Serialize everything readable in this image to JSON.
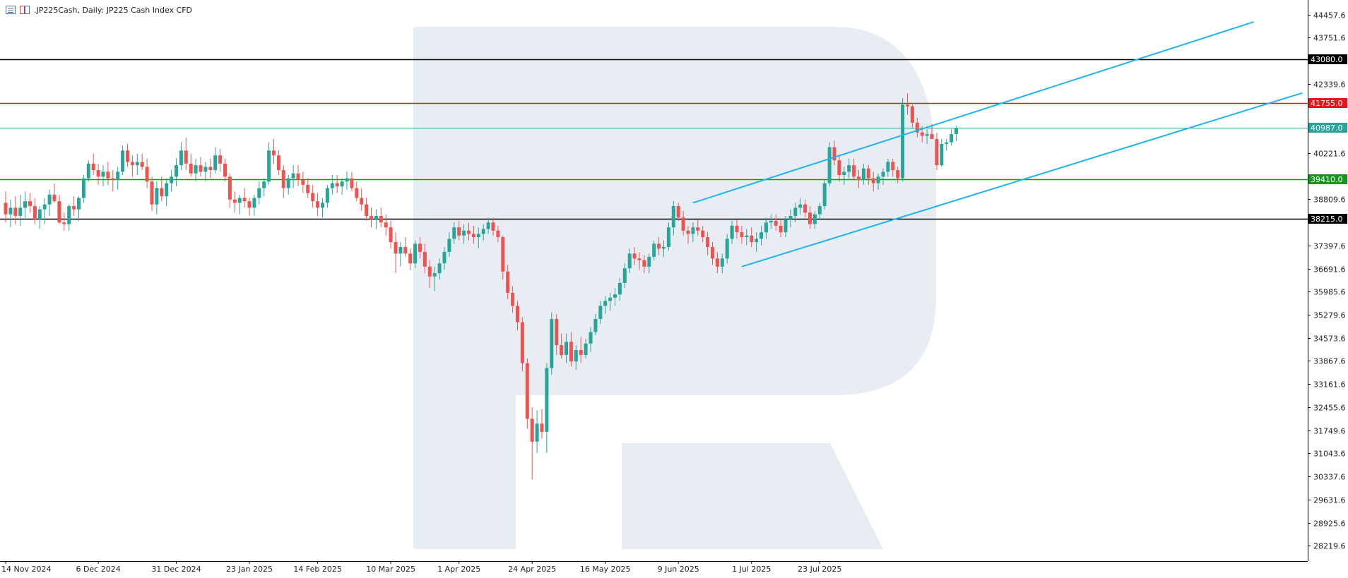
{
  "header": {
    "symbol": ".JP225Cash,",
    "timeframe": "Daily:",
    "description": "JP225 Cash Index CFD",
    "icons": [
      "chart-window-icon",
      "chart-type-icon"
    ]
  },
  "colors": {
    "background": "#ffffff",
    "bull": "#26a69a",
    "bear": "#ef5350",
    "channel": "#1eb4f0",
    "axis": "#000000",
    "watermark": "#e8ecf3"
  },
  "chart_data": {
    "type": "candlestick",
    "title": ".JP225Cash, Daily: JP225 Cash Index CFD",
    "y_axis": {
      "side": "right",
      "ticks": [
        "44457.6",
        "43751.6",
        "42339.6",
        "40221.6",
        "38809.6",
        "37397.6",
        "36691.6",
        "35985.6",
        "35279.6",
        "34573.6",
        "33867.6",
        "33161.6",
        "32455.6",
        "31749.6",
        "31043.6",
        "30337.6",
        "29631.6",
        "28925.6",
        "28219.6"
      ],
      "range": [
        27750,
        44900
      ]
    },
    "x_axis": {
      "labels": [
        "14 Nov 2024",
        "6 Dec 2024",
        "31 Dec 2024",
        "23 Jan 2025",
        "14 Feb 2025",
        "10 Mar 2025",
        "1 Apr 2025",
        "24 Apr 2025",
        "16 May 2025",
        "9 Jun 2025",
        "1 Jul 2025",
        "23 Jul 2025"
      ]
    },
    "horizontal_levels": [
      {
        "value": 43080.0,
        "label": "43080.0",
        "color": "#000000"
      },
      {
        "value": 41755.0,
        "label": "41755.0",
        "color": "#e8141e"
      },
      {
        "value": 40987.0,
        "label": "40987.0",
        "color": "#26a69a"
      },
      {
        "value": 39410.0,
        "label": "39410.0",
        "color": "#15961e"
      },
      {
        "value": 38215.0,
        "label": "38215.0",
        "color": "#000000"
      }
    ],
    "channel_lines": [
      {
        "from": {
          "bar": 141,
          "value": 38700
        },
        "to": {
          "bar": 256,
          "value": 44230
        }
      },
      {
        "from": {
          "bar": 151,
          "value": 36750
        },
        "to": {
          "bar": 266,
          "value": 42060
        }
      }
    ],
    "ohlc": [
      [
        38700,
        39050,
        38100,
        38350
      ],
      [
        38350,
        38800,
        37950,
        38550
      ],
      [
        38550,
        38900,
        38050,
        38300
      ],
      [
        38300,
        38950,
        38000,
        38550
      ],
      [
        38550,
        39050,
        38200,
        38750
      ],
      [
        38750,
        39000,
        38400,
        38600
      ],
      [
        38600,
        38850,
        38050,
        38200
      ],
      [
        38200,
        38600,
        37900,
        38500
      ],
      [
        38500,
        38850,
        38050,
        38650
      ],
      [
        38650,
        39100,
        38300,
        38950
      ],
      [
        38950,
        39300,
        38700,
        38750
      ],
      [
        38750,
        38950,
        38050,
        38100
      ],
      [
        38100,
        38400,
        37850,
        38050
      ],
      [
        38050,
        38650,
        37850,
        38600
      ],
      [
        38600,
        38900,
        38300,
        38500
      ],
      [
        38500,
        38900,
        38150,
        38850
      ],
      [
        38850,
        39550,
        38700,
        39450
      ],
      [
        39450,
        40000,
        39350,
        39900
      ],
      [
        39900,
        40200,
        39550,
        39700
      ],
      [
        39700,
        39900,
        39250,
        39500
      ],
      [
        39500,
        39850,
        39200,
        39650
      ],
      [
        39650,
        39950,
        39250,
        39450
      ],
      [
        39450,
        39700,
        39050,
        39400
      ],
      [
        39400,
        39800,
        39100,
        39650
      ],
      [
        39650,
        40450,
        39550,
        40300
      ],
      [
        40300,
        40500,
        39800,
        39950
      ],
      [
        39950,
        40150,
        39500,
        39850
      ],
      [
        39850,
        40200,
        39550,
        39950
      ],
      [
        39950,
        40200,
        39700,
        39800
      ],
      [
        39800,
        40050,
        39150,
        39350
      ],
      [
        39350,
        39500,
        38450,
        38650
      ],
      [
        38650,
        39350,
        38350,
        39150
      ],
      [
        39150,
        39500,
        38750,
        38900
      ],
      [
        38900,
        39450,
        38600,
        39300
      ],
      [
        39300,
        39700,
        39050,
        39500
      ],
      [
        39500,
        40050,
        39200,
        39850
      ],
      [
        39850,
        40550,
        39700,
        40300
      ],
      [
        40300,
        40700,
        39700,
        39900
      ],
      [
        39900,
        40200,
        39500,
        39600
      ],
      [
        39600,
        40050,
        39350,
        39850
      ],
      [
        39850,
        40100,
        39500,
        39650
      ],
      [
        39650,
        39950,
        39350,
        39800
      ],
      [
        39800,
        40050,
        39450,
        39700
      ],
      [
        39700,
        40400,
        39600,
        40150
      ],
      [
        40150,
        40350,
        39650,
        39900
      ],
      [
        39900,
        40050,
        39350,
        39500
      ],
      [
        39500,
        39600,
        38550,
        38800
      ],
      [
        38800,
        39050,
        38400,
        38700
      ],
      [
        38700,
        38950,
        38350,
        38850
      ],
      [
        38850,
        39150,
        38550,
        38750
      ],
      [
        38750,
        38850,
        38300,
        38550
      ],
      [
        38550,
        38950,
        38300,
        38850
      ],
      [
        38850,
        39350,
        38650,
        39150
      ],
      [
        39150,
        39450,
        38900,
        39350
      ],
      [
        39350,
        40550,
        39250,
        40300
      ],
      [
        40300,
        40650,
        39900,
        40150
      ],
      [
        40150,
        40300,
        39550,
        39700
      ],
      [
        39700,
        39850,
        38850,
        39150
      ],
      [
        39150,
        39550,
        38950,
        39450
      ],
      [
        39450,
        39850,
        39150,
        39600
      ],
      [
        39600,
        39850,
        39200,
        39400
      ],
      [
        39400,
        39650,
        39000,
        39250
      ],
      [
        39250,
        39450,
        38850,
        39000
      ],
      [
        39000,
        39250,
        38550,
        38750
      ],
      [
        38750,
        39000,
        38300,
        38550
      ],
      [
        38550,
        38850,
        38250,
        38700
      ],
      [
        38700,
        39250,
        38550,
        39150
      ],
      [
        39150,
        39550,
        38950,
        39300
      ],
      [
        39300,
        39550,
        39000,
        39200
      ],
      [
        39200,
        39450,
        38950,
        39350
      ],
      [
        39350,
        39650,
        39100,
        39450
      ],
      [
        39450,
        39650,
        39050,
        39150
      ],
      [
        39150,
        39350,
        38750,
        38850
      ],
      [
        38850,
        39150,
        38450,
        38650
      ],
      [
        38650,
        38850,
        38150,
        38300
      ],
      [
        38300,
        38550,
        37950,
        38200
      ],
      [
        38200,
        38500,
        37900,
        38300
      ],
      [
        38300,
        38550,
        37950,
        38100
      ],
      [
        38100,
        38350,
        37700,
        37950
      ],
      [
        37950,
        38150,
        37300,
        37500
      ],
      [
        37500,
        37800,
        36550,
        37150
      ],
      [
        37150,
        37500,
        36750,
        37350
      ],
      [
        37350,
        37650,
        37050,
        37150
      ],
      [
        37150,
        37300,
        36650,
        36850
      ],
      [
        36850,
        37550,
        36700,
        37450
      ],
      [
        37450,
        37650,
        37000,
        37200
      ],
      [
        37200,
        37450,
        36550,
        36750
      ],
      [
        36750,
        36950,
        36100,
        36450
      ],
      [
        36450,
        36750,
        36000,
        36550
      ],
      [
        36550,
        37000,
        36350,
        36850
      ],
      [
        36850,
        37350,
        36650,
        37200
      ],
      [
        37200,
        37800,
        37050,
        37600
      ],
      [
        37600,
        38100,
        37450,
        37950
      ],
      [
        37950,
        38150,
        37550,
        37700
      ],
      [
        37700,
        38050,
        37450,
        37850
      ],
      [
        37850,
        38100,
        37550,
        37750
      ],
      [
        37750,
        38000,
        37450,
        37650
      ],
      [
        37650,
        37950,
        37300,
        37750
      ],
      [
        37750,
        38050,
        37550,
        37900
      ],
      [
        37900,
        38250,
        37750,
        38100
      ],
      [
        38100,
        38250,
        37700,
        37850
      ],
      [
        37850,
        38000,
        37500,
        37650
      ],
      [
        37650,
        37700,
        36350,
        36600
      ],
      [
        36600,
        36800,
        35750,
        35950
      ],
      [
        35950,
        36150,
        35350,
        35550
      ],
      [
        35550,
        35700,
        34800,
        35050
      ],
      [
        35050,
        35200,
        33550,
        33800
      ],
      [
        33800,
        33950,
        31800,
        32100
      ],
      [
        32100,
        32450,
        30250,
        31400
      ],
      [
        31400,
        32350,
        31050,
        31950
      ],
      [
        31950,
        32400,
        31500,
        31700
      ],
      [
        31700,
        33800,
        31050,
        33650
      ],
      [
        33650,
        35350,
        33450,
        35150
      ],
      [
        35150,
        35300,
        34050,
        34350
      ],
      [
        34350,
        34700,
        33950,
        34050
      ],
      [
        34050,
        34700,
        33800,
        34450
      ],
      [
        34450,
        34750,
        33700,
        33850
      ],
      [
        33850,
        34350,
        33600,
        34200
      ],
      [
        34200,
        34600,
        33800,
        34050
      ],
      [
        34050,
        34550,
        33950,
        34400
      ],
      [
        34400,
        34900,
        34150,
        34750
      ],
      [
        34750,
        35300,
        34650,
        35150
      ],
      [
        35150,
        35700,
        35000,
        35550
      ],
      [
        35550,
        35850,
        35300,
        35700
      ],
      [
        35700,
        35950,
        35400,
        35800
      ],
      [
        35800,
        36100,
        35550,
        35900
      ],
      [
        35900,
        36400,
        35700,
        36250
      ],
      [
        36250,
        36850,
        36100,
        36700
      ],
      [
        36700,
        37300,
        36550,
        37150
      ],
      [
        37150,
        37350,
        36800,
        37000
      ],
      [
        37000,
        37200,
        36650,
        36950
      ],
      [
        36950,
        37100,
        36550,
        36750
      ],
      [
        36750,
        37150,
        36550,
        37050
      ],
      [
        37050,
        37550,
        36950,
        37450
      ],
      [
        37450,
        37650,
        37100,
        37300
      ],
      [
        37300,
        37550,
        37050,
        37350
      ],
      [
        37350,
        38100,
        37250,
        37950
      ],
      [
        37950,
        38750,
        37700,
        38600
      ],
      [
        38600,
        38700,
        38150,
        38250
      ],
      [
        38250,
        38450,
        37700,
        37850
      ],
      [
        37850,
        38000,
        37450,
        37750
      ],
      [
        37750,
        38100,
        37500,
        37950
      ],
      [
        37950,
        38200,
        37700,
        37850
      ],
      [
        37850,
        38000,
        37500,
        37650
      ],
      [
        37650,
        37800,
        37100,
        37350
      ],
      [
        37350,
        37500,
        36800,
        37000
      ],
      [
        37000,
        37200,
        36550,
        36750
      ],
      [
        36750,
        37150,
        36550,
        37000
      ],
      [
        37000,
        37750,
        36850,
        37600
      ],
      [
        37600,
        38150,
        37450,
        38000
      ],
      [
        38000,
        38200,
        37600,
        37800
      ],
      [
        37800,
        38000,
        37450,
        37650
      ],
      [
        37650,
        37900,
        37400,
        37700
      ],
      [
        37700,
        37950,
        37350,
        37500
      ],
      [
        37500,
        37800,
        37200,
        37600
      ],
      [
        37600,
        38000,
        37400,
        37800
      ],
      [
        37800,
        38250,
        37600,
        38100
      ],
      [
        38100,
        38350,
        37900,
        38150
      ],
      [
        38150,
        38350,
        37850,
        38000
      ],
      [
        38000,
        38200,
        37650,
        37800
      ],
      [
        37800,
        38300,
        37650,
        38200
      ],
      [
        38200,
        38500,
        37950,
        38300
      ],
      [
        38300,
        38700,
        38100,
        38550
      ],
      [
        38550,
        38850,
        38350,
        38650
      ],
      [
        38650,
        38800,
        38250,
        38400
      ],
      [
        38400,
        38600,
        37900,
        38050
      ],
      [
        38050,
        38450,
        37900,
        38350
      ],
      [
        38350,
        38700,
        38200,
        38600
      ],
      [
        38600,
        39400,
        38500,
        39300
      ],
      [
        39300,
        40550,
        39200,
        40400
      ],
      [
        40400,
        40600,
        39850,
        40000
      ],
      [
        40000,
        40150,
        39350,
        39550
      ],
      [
        39550,
        39800,
        39250,
        39650
      ],
      [
        39650,
        40050,
        39450,
        39850
      ],
      [
        39850,
        40050,
        39400,
        39500
      ],
      [
        39500,
        39700,
        39150,
        39400
      ],
      [
        39400,
        39900,
        39250,
        39750
      ],
      [
        39750,
        39850,
        39250,
        39450
      ],
      [
        39450,
        39650,
        39050,
        39300
      ],
      [
        39300,
        39600,
        39100,
        39500
      ],
      [
        39500,
        39750,
        39250,
        39650
      ],
      [
        39650,
        40050,
        39500,
        39950
      ],
      [
        39950,
        40050,
        39500,
        39700
      ],
      [
        39700,
        39800,
        39300,
        39450
      ],
      [
        39450,
        41900,
        39350,
        41700
      ],
      [
        41700,
        42050,
        41400,
        41650
      ],
      [
        41650,
        41700,
        41000,
        41150
      ],
      [
        41150,
        41300,
        40700,
        40850
      ],
      [
        40850,
        41050,
        40550,
        40750
      ],
      [
        40750,
        40950,
        40500,
        40800
      ],
      [
        40800,
        41100,
        40650,
        40650
      ],
      [
        40650,
        40850,
        39700,
        39850
      ],
      [
        39850,
        40650,
        39800,
        40500
      ],
      [
        40500,
        40650,
        40300,
        40550
      ],
      [
        40550,
        40950,
        40450,
        40800
      ],
      [
        40800,
        41050,
        40600,
        40987
      ]
    ],
    "watermark": "R logo"
  }
}
